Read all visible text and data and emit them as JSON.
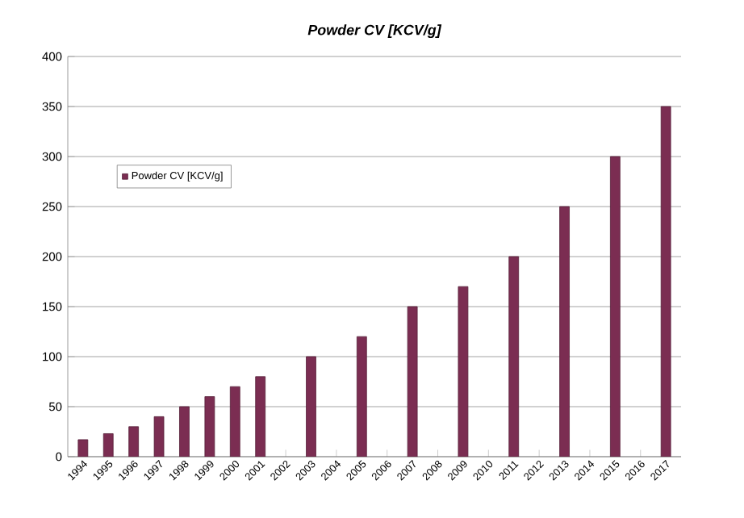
{
  "chart_data": {
    "type": "bar",
    "title": "Powder CV [KCV/g]",
    "categories": [
      "1994",
      "1995",
      "1996",
      "1997",
      "1998",
      "1999",
      "2000",
      "2001",
      "2002",
      "2003",
      "2004",
      "2005",
      "2006",
      "2007",
      "2008",
      "2009",
      "2010",
      "2011",
      "2012",
      "2013",
      "2014",
      "2015",
      "2016",
      "2017"
    ],
    "series": [
      {
        "name": "Powder CV [KCV/g]",
        "color": "#7b2d52",
        "values": [
          17,
          23,
          30,
          40,
          50,
          60,
          70,
          80,
          null,
          100,
          null,
          120,
          null,
          150,
          null,
          170,
          null,
          200,
          null,
          250,
          null,
          300,
          null,
          350
        ]
      }
    ],
    "ylim": [
      0,
      400
    ],
    "yticks": [
      0,
      50,
      100,
      150,
      200,
      250,
      300,
      350,
      400
    ],
    "grid": "y",
    "legend": "left"
  }
}
